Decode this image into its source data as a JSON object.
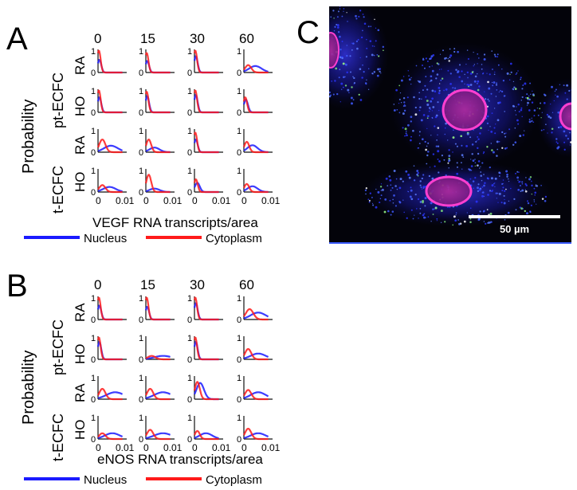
{
  "panels": {
    "a_label": "A",
    "b_label": "B",
    "c_label": "C"
  },
  "common": {
    "times": [
      "0",
      "15",
      "30",
      "60"
    ],
    "y_title": "Probability",
    "group_labels": [
      "pt-ECFC",
      "t-ECFC"
    ],
    "row_labels": [
      "RA",
      "HO",
      "RA",
      "HO"
    ],
    "y_tick_1": "1",
    "y_tick_0": "0",
    "x_tick_0": "0",
    "x_tick_max": "0.01",
    "legend": {
      "nucleus": "Nucleus",
      "cytoplasm": "Cytoplasm"
    },
    "colors": {
      "nucleus": "#1a1aff",
      "cytoplasm": "#ff1a1a",
      "overlap": "#9b1b6e"
    }
  },
  "panel_c": {
    "scale_label": "50 µm"
  },
  "chart_data": [
    {
      "type": "line",
      "panel": "A",
      "xlabel": "VEGF RNA transcripts/area",
      "ylabel": "Probability",
      "xlim": [
        0,
        0.01
      ],
      "ylim": [
        0,
        1
      ],
      "columns": [
        "0",
        "15",
        "30",
        "60"
      ],
      "rows": [
        "pt-ECFC RA",
        "pt-ECFC HO",
        "t-ECFC RA",
        "t-ECFC HO"
      ],
      "series": [
        {
          "name": "Nucleus",
          "grid": [
            [
              [
                0.0005,
                0.55
              ],
              [
                0.0005,
                0.5
              ],
              [
                0.0005,
                0.7
              ],
              [
                0.004,
                0.28
              ]
            ],
            [
              [
                0.0005,
                0.65
              ],
              [
                0.0005,
                0.7
              ],
              [
                0.0005,
                0.75
              ],
              [
                0.0007,
                0.55
              ]
            ],
            [
              [
                0.0045,
                0.28
              ],
              [
                0.003,
                0.2
              ],
              [
                0.0005,
                0.55
              ],
              [
                0.003,
                0.3
              ]
            ],
            [
              [
                0.004,
                0.22
              ],
              [
                0.003,
                0.15
              ],
              [
                0.001,
                0.4
              ],
              [
                0.003,
                0.25
              ]
            ]
          ]
        },
        {
          "name": "Cytoplasm",
          "grid": [
            [
              [
                0.0003,
                0.95
              ],
              [
                0.0003,
                0.85
              ],
              [
                0.0003,
                0.95
              ],
              [
                0.0015,
                0.32
              ]
            ],
            [
              [
                0.0003,
                0.95
              ],
              [
                0.0003,
                0.9
              ],
              [
                0.0003,
                0.95
              ],
              [
                0.0005,
                0.65
              ]
            ],
            [
              [
                0.0015,
                0.55
              ],
              [
                0.001,
                0.55
              ],
              [
                0.0003,
                0.85
              ],
              [
                0.001,
                0.45
              ]
            ],
            [
              [
                0.0015,
                0.3
              ],
              [
                0.001,
                0.75
              ],
              [
                0.0005,
                0.55
              ],
              [
                0.001,
                0.35
              ]
            ]
          ]
        }
      ]
    },
    {
      "type": "line",
      "panel": "B",
      "xlabel": "eNOS RNA transcripts/area",
      "ylabel": "Probability",
      "xlim": [
        0,
        0.01
      ],
      "ylim": [
        0,
        1
      ],
      "columns": [
        "0",
        "15",
        "30",
        "60"
      ],
      "rows": [
        "pt-ECFC RA",
        "pt-ECFC HO",
        "t-ECFC RA",
        "t-ECFC HO"
      ],
      "series": [
        {
          "name": "Nucleus",
          "grid": [
            [
              [
                0.0005,
                0.6
              ],
              [
                0.0005,
                0.55
              ],
              [
                0.0005,
                0.7
              ],
              [
                0.005,
                0.3
              ]
            ],
            [
              [
                0.0005,
                0.75
              ],
              [
                0.006,
                0.15
              ],
              [
                0.0005,
                0.75
              ],
              [
                0.005,
                0.25
              ]
            ],
            [
              [
                0.006,
                0.3
              ],
              [
                0.006,
                0.3
              ],
              [
                0.002,
                0.7
              ],
              [
                0.005,
                0.3
              ]
            ],
            [
              [
                0.005,
                0.25
              ],
              [
                0.006,
                0.25
              ],
              [
                0.004,
                0.25
              ],
              [
                0.005,
                0.25
              ]
            ]
          ]
        },
        {
          "name": "Cytoplasm",
          "grid": [
            [
              [
                0.0003,
                0.95
              ],
              [
                0.0003,
                0.95
              ],
              [
                0.0003,
                0.95
              ],
              [
                0.002,
                0.45
              ]
            ],
            [
              [
                0.0003,
                0.95
              ],
              [
                0.002,
                0.15
              ],
              [
                0.0003,
                0.95
              ],
              [
                0.0015,
                0.45
              ]
            ],
            [
              [
                0.0015,
                0.45
              ],
              [
                0.0015,
                0.45
              ],
              [
                0.001,
                0.75
              ],
              [
                0.0015,
                0.4
              ]
            ],
            [
              [
                0.0015,
                0.25
              ],
              [
                0.0015,
                0.4
              ],
              [
                0.001,
                0.35
              ],
              [
                0.0015,
                0.45
              ]
            ]
          ]
        }
      ]
    }
  ]
}
